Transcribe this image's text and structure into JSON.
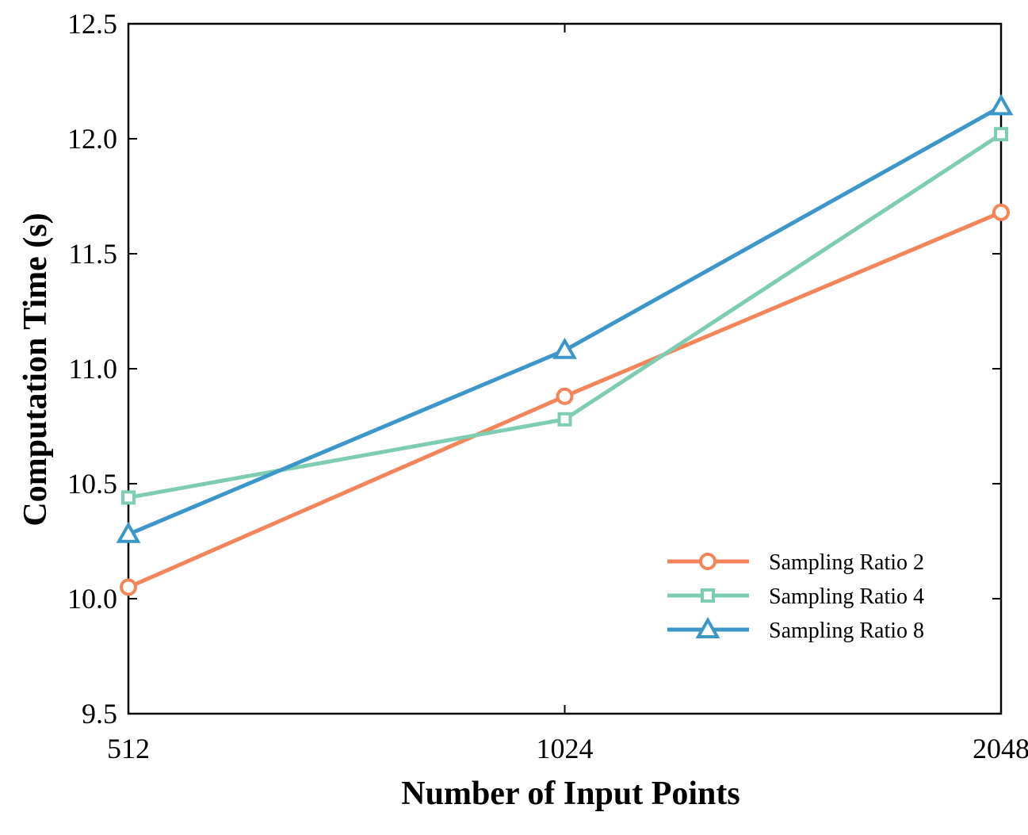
{
  "chart_data": {
    "type": "line",
    "title": "",
    "xlabel": "Number of Input Points",
    "ylabel": "Computation Time (s)",
    "categories": [
      "512",
      "1024",
      "2048"
    ],
    "ylim": [
      9.5,
      12.5
    ],
    "yticks": [
      "9.5",
      "10.0",
      "10.5",
      "11.0",
      "11.5",
      "12.0",
      "12.5"
    ],
    "grid": false,
    "legend_position": "bottom-right",
    "series": [
      {
        "name": "Sampling Ratio 2",
        "values": [
          10.05,
          10.88,
          11.68
        ],
        "color": "#F4845A",
        "marker": "circle"
      },
      {
        "name": "Sampling Ratio 4",
        "values": [
          10.44,
          10.78,
          12.02
        ],
        "color": "#7ECDB2",
        "marker": "square"
      },
      {
        "name": "Sampling Ratio 8",
        "values": [
          10.28,
          11.08,
          12.14
        ],
        "color": "#3C97C8",
        "marker": "triangle"
      }
    ]
  }
}
